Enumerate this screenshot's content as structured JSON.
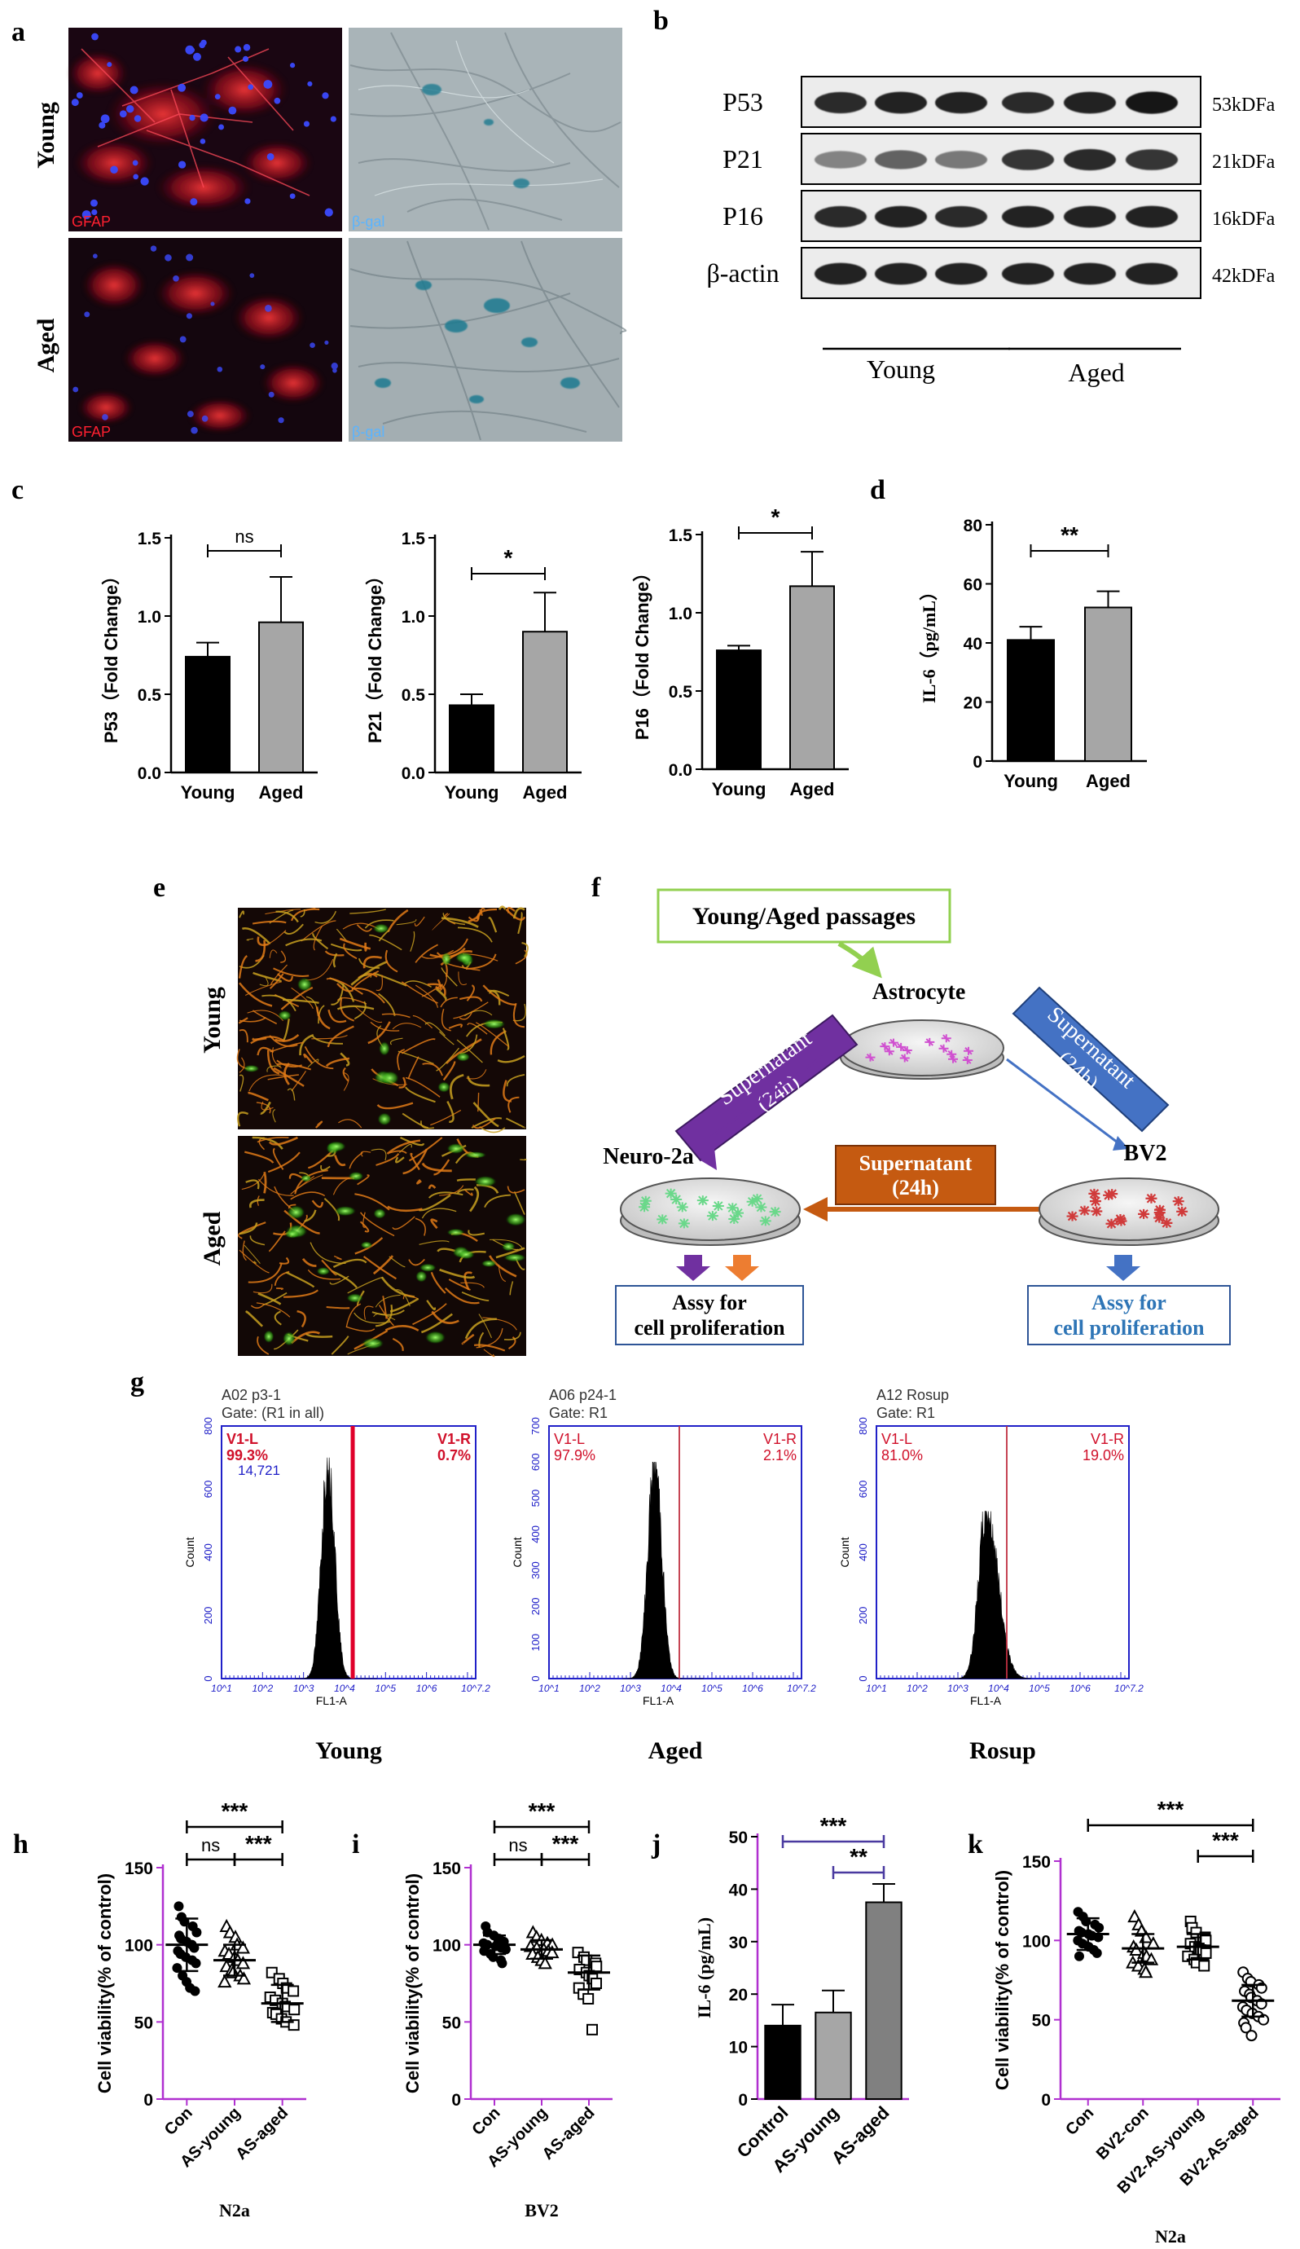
{
  "panel_letters": [
    "a",
    "b",
    "c",
    "d",
    "e",
    "f",
    "g",
    "h",
    "i",
    "j",
    "k"
  ],
  "panel_a": {
    "rows": [
      "Young",
      "Aged"
    ],
    "stain_labels": [
      "GFAP",
      "β-gal"
    ]
  },
  "panel_b": {
    "proteins": [
      "P53",
      "P21",
      "P16",
      "β-actin"
    ],
    "sizes": [
      "53kDFa",
      "21kDFa",
      "16kDFa",
      "42kDFa"
    ],
    "groups": [
      "Young",
      "Aged"
    ],
    "band_intensity": [
      [
        0.85,
        0.9,
        0.88,
        0.86,
        0.9,
        0.95
      ],
      [
        0.45,
        0.6,
        0.5,
        0.8,
        0.85,
        0.8
      ],
      [
        0.85,
        0.88,
        0.85,
        0.9,
        0.9,
        0.9
      ],
      [
        0.9,
        0.9,
        0.9,
        0.9,
        0.9,
        0.9
      ]
    ]
  },
  "panel_e": {
    "rows": [
      "Young",
      "Aged"
    ]
  },
  "panel_f": {
    "top_box": "Young/Aged passages",
    "astrocyte": "Astrocyte",
    "left_arrow_line1": "Supernatant",
    "left_arrow_line2": "(24h)",
    "right_arrow_line1": "Supernatant",
    "right_arrow_line2": "(24h)",
    "middle_box_line1": "Supernatant",
    "middle_box_line2": "(24h)",
    "neuro": "Neuro-2a",
    "bv2": "BV2",
    "assay_left_line1": "Assy for",
    "assay_left_line2": "cell proliferation",
    "assay_right_line1": "Assy for",
    "assay_right_line2": "cell proliferation",
    "colors": {
      "purple": "#7030a0",
      "blue": "#4472c4",
      "orange": "#c55a11",
      "green": "#92d050"
    }
  },
  "chart_data": [
    {
      "panel": "c",
      "type": "bar",
      "title": "",
      "categories": [
        "Young",
        "Aged"
      ],
      "values": [
        0.74,
        0.96
      ],
      "errors": [
        0.09,
        0.29
      ],
      "ylabel": "P53（Fold Change）",
      "ylim": [
        0,
        1.5
      ],
      "yticks": [
        "0.0",
        "0.5",
        "1.0",
        "1.5"
      ],
      "significance": "ns",
      "colors": [
        "#000000",
        "#a6a6a6"
      ]
    },
    {
      "panel": "c",
      "type": "bar",
      "title": "",
      "categories": [
        "Young",
        "Aged"
      ],
      "values": [
        0.43,
        0.9
      ],
      "errors": [
        0.07,
        0.25
      ],
      "ylabel": "P21（Fold Change）",
      "ylim": [
        0,
        1.5
      ],
      "yticks": [
        "0.0",
        "0.5",
        "1.0",
        "1.5"
      ],
      "significance": "*",
      "colors": [
        "#000000",
        "#a6a6a6"
      ]
    },
    {
      "panel": "c",
      "type": "bar",
      "title": "",
      "categories": [
        "Young",
        "Aged"
      ],
      "values": [
        0.76,
        1.17
      ],
      "errors": [
        0.03,
        0.22
      ],
      "ylabel": "P16（Fold Change）",
      "ylim": [
        0,
        1.5
      ],
      "yticks": [
        "0.0",
        "0.5",
        "1.0",
        "1.5"
      ],
      "significance": "*",
      "colors": [
        "#000000",
        "#a6a6a6"
      ]
    },
    {
      "panel": "d",
      "type": "bar",
      "title": "",
      "categories": [
        "Young",
        "Aged"
      ],
      "values": [
        41,
        52
      ],
      "errors": [
        4.5,
        5.5
      ],
      "ylabel": "IL-6（pg/mL）",
      "ylim": [
        0,
        80
      ],
      "yticks": [
        "0",
        "20",
        "40",
        "60",
        "80"
      ],
      "significance": "**",
      "colors": [
        "#000000",
        "#a6a6a6"
      ]
    },
    {
      "panel": "g",
      "type": "histogram",
      "title_lines": [
        "A02 p3-1",
        "Gate: (R1 in all)"
      ],
      "left_label": "V1-L",
      "left_pct": "99.3%",
      "left_count": "14,721",
      "right_label": "V1-R",
      "right_pct": "0.7%",
      "peak": 3.6,
      "width": 0.16,
      "skew": 0,
      "max_count": 700,
      "ylim": [
        0,
        800
      ],
      "yticks": [
        "0",
        "200",
        "400",
        "600",
        "800"
      ],
      "xlim": [
        1,
        7.2
      ],
      "xticks": [
        "10^1",
        "10^2",
        "10^3",
        "10^4",
        "10^5",
        "10^6",
        "10^7.2"
      ],
      "gate": 4.2,
      "xlabel": "FL1-A",
      "ylabel": "Count",
      "caption": "Young",
      "bold_gate": true
    },
    {
      "panel": "g",
      "type": "histogram",
      "title_lines": [
        "A06 p24-1",
        "Gate: R1"
      ],
      "left_label": "V1-L",
      "left_pct": "97.9%",
      "right_label": "V1-R",
      "right_pct": "2.1%",
      "peak": 3.6,
      "width": 0.17,
      "skew": 0,
      "max_count": 600,
      "ylim": [
        0,
        700
      ],
      "yticks": [
        "0",
        "100",
        "200",
        "300",
        "400",
        "500",
        "600",
        "700"
      ],
      "xlim": [
        1,
        7.2
      ],
      "xticks": [
        "10^1",
        "10^2",
        "10^3",
        "10^4",
        "10^5",
        "10^6",
        "10^7.2"
      ],
      "gate": 4.2,
      "xlabel": "FL1-A",
      "ylabel": "Count",
      "caption": "Aged",
      "bold_gate": false
    },
    {
      "panel": "g",
      "type": "histogram",
      "title_lines": [
        "A12 Rosup",
        "Gate: R1"
      ],
      "left_label": "V1-L",
      "left_pct": "81.0%",
      "right_label": "V1-R",
      "right_pct": "19.0%",
      "peak": 3.7,
      "width": 0.19,
      "skew": 0.25,
      "max_count": 530,
      "ylim": [
        0,
        800
      ],
      "yticks": [
        "0",
        "200",
        "400",
        "600",
        "800"
      ],
      "xlim": [
        1,
        7.2
      ],
      "xticks": [
        "10^1",
        "10^2",
        "10^3",
        "10^4",
        "10^5",
        "10^6",
        "10^7.2"
      ],
      "gate": 4.2,
      "xlabel": "FL1-A",
      "ylabel": "Count",
      "caption": "Rosup",
      "bold_gate": false
    },
    {
      "panel": "h",
      "type": "scatter",
      "title": "",
      "categories": [
        "Con",
        "AS-young",
        "AS-aged"
      ],
      "markers": [
        "circle-filled",
        "triangle-open",
        "square-open"
      ],
      "means": [
        100,
        90,
        62
      ],
      "sds": [
        17,
        10,
        12
      ],
      "points": [
        [
          125,
          118,
          115,
          112,
          108,
          106,
          104,
          102,
          100,
          98,
          96,
          94,
          92,
          90,
          88,
          85,
          80,
          76,
          72,
          70
        ],
        [
          112,
          108,
          105,
          100,
          98,
          96,
          94,
          92,
          90,
          88,
          86,
          84,
          82,
          80,
          78,
          76
        ],
        [
          82,
          78,
          75,
          72,
          70,
          66,
          64,
          62,
          60,
          58,
          56,
          55,
          52,
          50,
          48
        ]
      ],
      "ylabel": "Cell viability(% of control)",
      "ylim": [
        0,
        150
      ],
      "yticks": [
        "0",
        "50",
        "100",
        "150"
      ],
      "xlabel": "N2a",
      "sig": [
        {
          "from": 0,
          "to": 2,
          "label": "***",
          "level": 1
        },
        {
          "from": 0,
          "to": 1,
          "label": "ns",
          "level": 0
        },
        {
          "from": 1,
          "to": 2,
          "label": "***",
          "level": 0
        }
      ]
    },
    {
      "panel": "i",
      "type": "scatter",
      "title": "",
      "categories": [
        "Con",
        "AS-young",
        "AS-aged"
      ],
      "markers": [
        "circle-filled",
        "triangle-open",
        "square-open"
      ],
      "means": [
        100,
        97,
        82
      ],
      "sds": [
        6,
        6,
        11
      ],
      "points": [
        [
          112,
          108,
          106,
          104,
          102,
          101,
          100,
          99,
          98,
          97,
          96,
          94,
          92,
          90,
          88
        ],
        [
          108,
          105,
          103,
          101,
          100,
          99,
          98,
          97,
          96,
          95,
          94,
          92,
          90,
          88
        ],
        [
          95,
          92,
          90,
          88,
          86,
          84,
          82,
          80,
          78,
          75,
          72,
          68,
          65,
          45
        ]
      ],
      "ylabel": "Cell viability(% of control)",
      "ylim": [
        0,
        150
      ],
      "yticks": [
        "0",
        "50",
        "100",
        "150"
      ],
      "xlabel": "BV2",
      "sig": [
        {
          "from": 0,
          "to": 2,
          "label": "***",
          "level": 1
        },
        {
          "from": 0,
          "to": 1,
          "label": "ns",
          "level": 0
        },
        {
          "from": 1,
          "to": 2,
          "label": "***",
          "level": 0
        }
      ]
    },
    {
      "panel": "j",
      "type": "bar",
      "title": "",
      "categories": [
        "Control",
        "AS-young",
        "AS-aged"
      ],
      "values": [
        14,
        16.5,
        37.5
      ],
      "errors": [
        4,
        4.2,
        3.5
      ],
      "ylabel": "IL-6 (pg/mL)",
      "ylim": [
        0,
        50
      ],
      "yticks": [
        "0",
        "10",
        "20",
        "30",
        "40",
        "50"
      ],
      "colors": [
        "#000000",
        "#a6a6a6",
        "#808080"
      ],
      "sig": [
        {
          "from": 0,
          "to": 2,
          "label": "***",
          "level": 1
        },
        {
          "from": 1,
          "to": 2,
          "label": "**",
          "level": 0
        }
      ]
    },
    {
      "panel": "k",
      "type": "scatter",
      "title": "",
      "categories": [
        "Con",
        "BV2-con",
        "BV2-AS-young",
        "BV2-AS-aged"
      ],
      "markers": [
        "circle-filled",
        "triangle-open",
        "square-open",
        "circle-open"
      ],
      "means": [
        104,
        95,
        96,
        62
      ],
      "sds": [
        10,
        9,
        8,
        10
      ],
      "points": [
        [
          118,
          115,
          112,
          110,
          108,
          106,
          105,
          104,
          103,
          102,
          100,
          98,
          96,
          94,
          92,
          90
        ],
        [
          115,
          110,
          106,
          102,
          98,
          96,
          94,
          92,
          90,
          88,
          86,
          84,
          82,
          80
        ],
        [
          112,
          108,
          105,
          102,
          100,
          98,
          96,
          95,
          94,
          92,
          90,
          88,
          86,
          84
        ],
        [
          80,
          76,
          74,
          72,
          70,
          68,
          66,
          64,
          62,
          60,
          58,
          56,
          54,
          52,
          50,
          48,
          45,
          40
        ]
      ],
      "ylabel": "Cell viability(% of control)",
      "ylim": [
        0,
        150
      ],
      "yticks": [
        "0",
        "50",
        "100",
        "150"
      ],
      "xlabel": "N2a",
      "sig": [
        {
          "from": 0,
          "to": 3,
          "label": "***",
          "level": 1
        },
        {
          "from": 2,
          "to": 3,
          "label": "***",
          "level": 0
        }
      ]
    }
  ]
}
